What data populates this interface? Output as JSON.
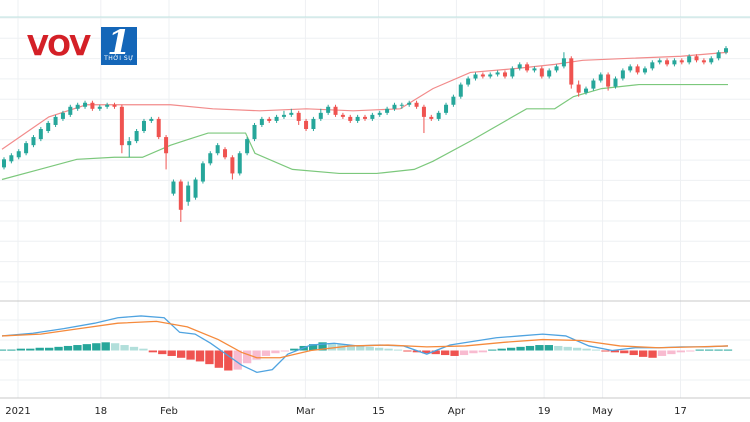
{
  "logo": {
    "brand": "VOV",
    "channel": "1",
    "channel_sub": "THỜI SỰ"
  },
  "colors": {
    "up": "#26a69a",
    "down": "#ef5350",
    "upper_band": "#f28b8b",
    "lower_band": "#7cc87c",
    "macd": "#4fa3e0",
    "signal": "#f58a3c",
    "hist_up_strong": "#26a69a",
    "hist_up_weak": "#b2dfdb",
    "hist_down_strong": "#ef5350",
    "hist_down_weak": "#f8bbd0"
  },
  "chart_data": {
    "type": "candlestick",
    "xaxis_ticks": [
      {
        "label": "2021",
        "day": 0
      },
      {
        "label": "18",
        "day": 17
      },
      {
        "label": "Feb",
        "day": 31
      },
      {
        "label": "Mar",
        "day": 59
      },
      {
        "label": "15",
        "day": 74
      },
      {
        "label": "Apr",
        "day": 90
      },
      {
        "label": "19",
        "day": 108
      },
      {
        "label": "May",
        "day": 120
      },
      {
        "label": "17",
        "day": 136
      }
    ],
    "price_range": [
      0,
      100
    ],
    "candles": [
      {
        "o": 31,
        "c": 35,
        "h": 36,
        "l": 30
      },
      {
        "o": 34,
        "c": 37,
        "h": 38,
        "l": 33
      },
      {
        "o": 36,
        "c": 39,
        "h": 40,
        "l": 35
      },
      {
        "o": 38,
        "c": 43,
        "h": 44,
        "l": 37
      },
      {
        "o": 42,
        "c": 46,
        "h": 47,
        "l": 41
      },
      {
        "o": 45,
        "c": 50,
        "h": 51,
        "l": 44
      },
      {
        "o": 49,
        "c": 53,
        "h": 54,
        "l": 48
      },
      {
        "o": 52,
        "c": 56,
        "h": 57,
        "l": 51
      },
      {
        "o": 55,
        "c": 58,
        "h": 59,
        "l": 54
      },
      {
        "o": 57,
        "c": 61,
        "h": 62,
        "l": 56
      },
      {
        "o": 60,
        "c": 62,
        "h": 63,
        "l": 59
      },
      {
        "o": 61,
        "c": 63,
        "h": 64,
        "l": 60
      },
      {
        "o": 63,
        "c": 60,
        "h": 64,
        "l": 59
      },
      {
        "o": 60,
        "c": 61,
        "h": 62,
        "l": 59
      },
      {
        "o": 61,
        "c": 62,
        "h": 63,
        "l": 60
      },
      {
        "o": 62,
        "c": 61,
        "h": 63,
        "l": 60
      },
      {
        "o": 61,
        "c": 42,
        "h": 62,
        "l": 38
      },
      {
        "o": 42,
        "c": 44,
        "h": 46,
        "l": 36
      },
      {
        "o": 44,
        "c": 49,
        "h": 50,
        "l": 43
      },
      {
        "o": 49,
        "c": 54,
        "h": 55,
        "l": 48
      },
      {
        "o": 54,
        "c": 55,
        "h": 56,
        "l": 53
      },
      {
        "o": 55,
        "c": 46,
        "h": 56,
        "l": 45
      },
      {
        "o": 46,
        "c": 38,
        "h": 47,
        "l": 30
      },
      {
        "o": 18,
        "c": 24,
        "h": 25,
        "l": 17
      },
      {
        "o": 24,
        "c": 10,
        "h": 25,
        "l": 4
      },
      {
        "o": 14,
        "c": 22,
        "h": 24,
        "l": 12
      },
      {
        "o": 16,
        "c": 25,
        "h": 26,
        "l": 15
      },
      {
        "o": 24,
        "c": 33,
        "h": 34,
        "l": 23
      },
      {
        "o": 33,
        "c": 38,
        "h": 39,
        "l": 32
      },
      {
        "o": 38,
        "c": 42,
        "h": 43,
        "l": 37
      },
      {
        "o": 40,
        "c": 36,
        "h": 41,
        "l": 35
      },
      {
        "o": 36,
        "c": 28,
        "h": 37,
        "l": 25
      },
      {
        "o": 28,
        "c": 38,
        "h": 39,
        "l": 27
      },
      {
        "o": 38,
        "c": 45,
        "h": 46,
        "l": 37
      },
      {
        "o": 45,
        "c": 52,
        "h": 53,
        "l": 44
      },
      {
        "o": 52,
        "c": 55,
        "h": 56,
        "l": 51
      },
      {
        "o": 55,
        "c": 54,
        "h": 56,
        "l": 53
      },
      {
        "o": 54,
        "c": 56,
        "h": 57,
        "l": 53
      },
      {
        "o": 56,
        "c": 57,
        "h": 59,
        "l": 55
      },
      {
        "o": 57,
        "c": 58,
        "h": 60,
        "l": 56
      },
      {
        "o": 58,
        "c": 54,
        "h": 59,
        "l": 52
      },
      {
        "o": 54,
        "c": 50,
        "h": 55,
        "l": 49
      },
      {
        "o": 50,
        "c": 55,
        "h": 56,
        "l": 49
      },
      {
        "o": 55,
        "c": 58,
        "h": 60,
        "l": 54
      },
      {
        "o": 58,
        "c": 61,
        "h": 62,
        "l": 57
      },
      {
        "o": 61,
        "c": 57,
        "h": 62,
        "l": 56
      },
      {
        "o": 57,
        "c": 56,
        "h": 58,
        "l": 55
      },
      {
        "o": 56,
        "c": 54,
        "h": 57,
        "l": 53
      },
      {
        "o": 54,
        "c": 56,
        "h": 57,
        "l": 53
      },
      {
        "o": 56,
        "c": 55,
        "h": 57,
        "l": 54
      },
      {
        "o": 55,
        "c": 57,
        "h": 58,
        "l": 54
      },
      {
        "o": 57,
        "c": 58,
        "h": 59,
        "l": 56
      },
      {
        "o": 58,
        "c": 60,
        "h": 61,
        "l": 57
      },
      {
        "o": 60,
        "c": 62,
        "h": 63,
        "l": 59
      },
      {
        "o": 62,
        "c": 62,
        "h": 63,
        "l": 60
      },
      {
        "o": 62,
        "c": 63,
        "h": 64,
        "l": 61
      },
      {
        "o": 63,
        "c": 61,
        "h": 64,
        "l": 60
      },
      {
        "o": 61,
        "c": 56,
        "h": 62,
        "l": 48
      },
      {
        "o": 56,
        "c": 55,
        "h": 57,
        "l": 54
      },
      {
        "o": 55,
        "c": 58,
        "h": 59,
        "l": 54
      },
      {
        "o": 58,
        "c": 62,
        "h": 63,
        "l": 57
      },
      {
        "o": 62,
        "c": 66,
        "h": 67,
        "l": 61
      },
      {
        "o": 66,
        "c": 72,
        "h": 73,
        "l": 65
      },
      {
        "o": 72,
        "c": 75,
        "h": 76,
        "l": 71
      },
      {
        "o": 75,
        "c": 77,
        "h": 78,
        "l": 74
      },
      {
        "o": 77,
        "c": 76,
        "h": 78,
        "l": 75
      },
      {
        "o": 76,
        "c": 77,
        "h": 78,
        "l": 75
      },
      {
        "o": 77,
        "c": 78,
        "h": 79,
        "l": 76
      },
      {
        "o": 78,
        "c": 76,
        "h": 79,
        "l": 75
      },
      {
        "o": 76,
        "c": 80,
        "h": 81,
        "l": 75
      },
      {
        "o": 80,
        "c": 82,
        "h": 83,
        "l": 79
      },
      {
        "o": 82,
        "c": 79,
        "h": 83,
        "l": 78
      },
      {
        "o": 79,
        "c": 80,
        "h": 81,
        "l": 78
      },
      {
        "o": 80,
        "c": 76,
        "h": 81,
        "l": 75
      },
      {
        "o": 76,
        "c": 79,
        "h": 80,
        "l": 75
      },
      {
        "o": 79,
        "c": 81,
        "h": 82,
        "l": 78
      },
      {
        "o": 81,
        "c": 85,
        "h": 88,
        "l": 80
      },
      {
        "o": 85,
        "c": 72,
        "h": 86,
        "l": 70
      },
      {
        "o": 72,
        "c": 68,
        "h": 74,
        "l": 66
      },
      {
        "o": 68,
        "c": 70,
        "h": 71,
        "l": 67
      },
      {
        "o": 70,
        "c": 74,
        "h": 75,
        "l": 69
      },
      {
        "o": 74,
        "c": 77,
        "h": 78,
        "l": 73
      },
      {
        "o": 77,
        "c": 71,
        "h": 78,
        "l": 69
      },
      {
        "o": 71,
        "c": 75,
        "h": 76,
        "l": 70
      },
      {
        "o": 75,
        "c": 79,
        "h": 80,
        "l": 74
      },
      {
        "o": 79,
        "c": 81,
        "h": 82,
        "l": 78
      },
      {
        "o": 81,
        "c": 78,
        "h": 82,
        "l": 77
      },
      {
        "o": 78,
        "c": 80,
        "h": 81,
        "l": 77
      },
      {
        "o": 80,
        "c": 83,
        "h": 84,
        "l": 79
      },
      {
        "o": 83,
        "c": 84,
        "h": 85,
        "l": 82
      },
      {
        "o": 84,
        "c": 82,
        "h": 85,
        "l": 81
      },
      {
        "o": 82,
        "c": 84,
        "h": 85,
        "l": 81
      },
      {
        "o": 84,
        "c": 83,
        "h": 85,
        "l": 82
      },
      {
        "o": 83,
        "c": 86,
        "h": 87,
        "l": 82
      },
      {
        "o": 86,
        "c": 84,
        "h": 87,
        "l": 83
      },
      {
        "o": 84,
        "c": 83,
        "h": 85,
        "l": 82
      },
      {
        "o": 83,
        "c": 85,
        "h": 86,
        "l": 82
      },
      {
        "o": 85,
        "c": 88,
        "h": 89,
        "l": 84
      },
      {
        "o": 88,
        "c": 90,
        "h": 91,
        "l": 87
      }
    ],
    "upper_band": [
      [
        0,
        40
      ],
      [
        10,
        56
      ],
      [
        18,
        62
      ],
      [
        25,
        62
      ],
      [
        30,
        62
      ],
      [
        36,
        62
      ],
      [
        45,
        60
      ],
      [
        55,
        59
      ],
      [
        65,
        60
      ],
      [
        75,
        59
      ],
      [
        85,
        60
      ],
      [
        92,
        70
      ],
      [
        100,
        78
      ],
      [
        110,
        80
      ],
      [
        118,
        82
      ],
      [
        124,
        84
      ],
      [
        134,
        85
      ],
      [
        145,
        86
      ],
      [
        155,
        88
      ]
    ],
    "lower_band": [
      [
        0,
        25
      ],
      [
        8,
        30
      ],
      [
        16,
        35
      ],
      [
        24,
        36
      ],
      [
        30,
        36
      ],
      [
        36,
        42
      ],
      [
        40,
        45
      ],
      [
        44,
        48
      ],
      [
        48,
        48
      ],
      [
        52,
        48
      ],
      [
        54,
        38
      ],
      [
        62,
        30
      ],
      [
        72,
        28
      ],
      [
        80,
        28
      ],
      [
        88,
        30
      ],
      [
        92,
        34
      ],
      [
        100,
        44
      ],
      [
        106,
        52
      ],
      [
        112,
        60
      ],
      [
        118,
        60
      ],
      [
        122,
        66
      ],
      [
        128,
        70
      ],
      [
        136,
        72
      ],
      [
        145,
        72
      ],
      [
        155,
        72
      ]
    ],
    "macd_range": [
      -5,
      5
    ],
    "macd": [
      [
        0,
        1.6
      ],
      [
        8,
        1.9
      ],
      [
        16,
        2.4
      ],
      [
        24,
        3.0
      ],
      [
        30,
        3.6
      ],
      [
        36,
        3.8
      ],
      [
        42,
        3.6
      ],
      [
        46,
        2.0
      ],
      [
        50,
        1.8
      ],
      [
        54,
        0.8
      ],
      [
        58,
        -0.4
      ],
      [
        62,
        -1.6
      ],
      [
        66,
        -2.4
      ],
      [
        70,
        -2.1
      ],
      [
        74,
        -0.4
      ],
      [
        80,
        0.6
      ],
      [
        86,
        0.8
      ],
      [
        92,
        0.5
      ],
      [
        98,
        0.6
      ],
      [
        104,
        0.5
      ],
      [
        110,
        -0.4
      ],
      [
        116,
        0.6
      ],
      [
        122,
        1.0
      ],
      [
        128,
        1.4
      ],
      [
        134,
        1.6
      ],
      [
        140,
        1.8
      ],
      [
        146,
        1.6
      ],
      [
        152,
        0.5
      ],
      [
        158,
        0.0
      ],
      [
        164,
        0.3
      ],
      [
        170,
        0.3
      ],
      [
        176,
        0.4
      ],
      [
        182,
        0.4
      ],
      [
        188,
        0.5
      ]
    ],
    "signal": [
      [
        0,
        1.6
      ],
      [
        10,
        1.8
      ],
      [
        20,
        2.4
      ],
      [
        30,
        3.0
      ],
      [
        40,
        3.2
      ],
      [
        48,
        2.6
      ],
      [
        56,
        1.2
      ],
      [
        62,
        -0.2
      ],
      [
        66,
        -0.8
      ],
      [
        72,
        -0.8
      ],
      [
        80,
        0.0
      ],
      [
        90,
        0.5
      ],
      [
        100,
        0.6
      ],
      [
        110,
        0.4
      ],
      [
        120,
        0.5
      ],
      [
        130,
        0.9
      ],
      [
        140,
        1.2
      ],
      [
        150,
        1.1
      ],
      [
        160,
        0.5
      ],
      [
        170,
        0.3
      ],
      [
        180,
        0.4
      ],
      [
        188,
        0.5
      ]
    ],
    "histogram": [
      0.1,
      0.1,
      0.2,
      0.2,
      0.3,
      0.3,
      0.4,
      0.5,
      0.6,
      0.7,
      0.8,
      0.9,
      0.8,
      0.6,
      0.4,
      0.2,
      -0.2,
      -0.4,
      -0.6,
      -0.8,
      -1.0,
      -1.2,
      -1.5,
      -1.9,
      -2.2,
      -2.1,
      -1.4,
      -1.0,
      -0.6,
      -0.3,
      -0.1,
      0.2,
      0.5,
      0.7,
      0.9,
      0.8,
      0.7,
      0.6,
      0.5,
      0.4,
      0.3,
      0.2,
      0.1,
      -0.1,
      -0.2,
      -0.3,
      -0.4,
      -0.5,
      -0.6,
      -0.5,
      -0.3,
      -0.2,
      0.1,
      0.2,
      0.3,
      0.4,
      0.5,
      0.6,
      0.6,
      0.5,
      0.4,
      0.3,
      0.2,
      0.1,
      -0.1,
      -0.2,
      -0.3,
      -0.5,
      -0.7,
      -0.8,
      -0.6,
      -0.4,
      -0.2,
      -0.1,
      0.1,
      0.1,
      0.1,
      0.1
    ]
  }
}
